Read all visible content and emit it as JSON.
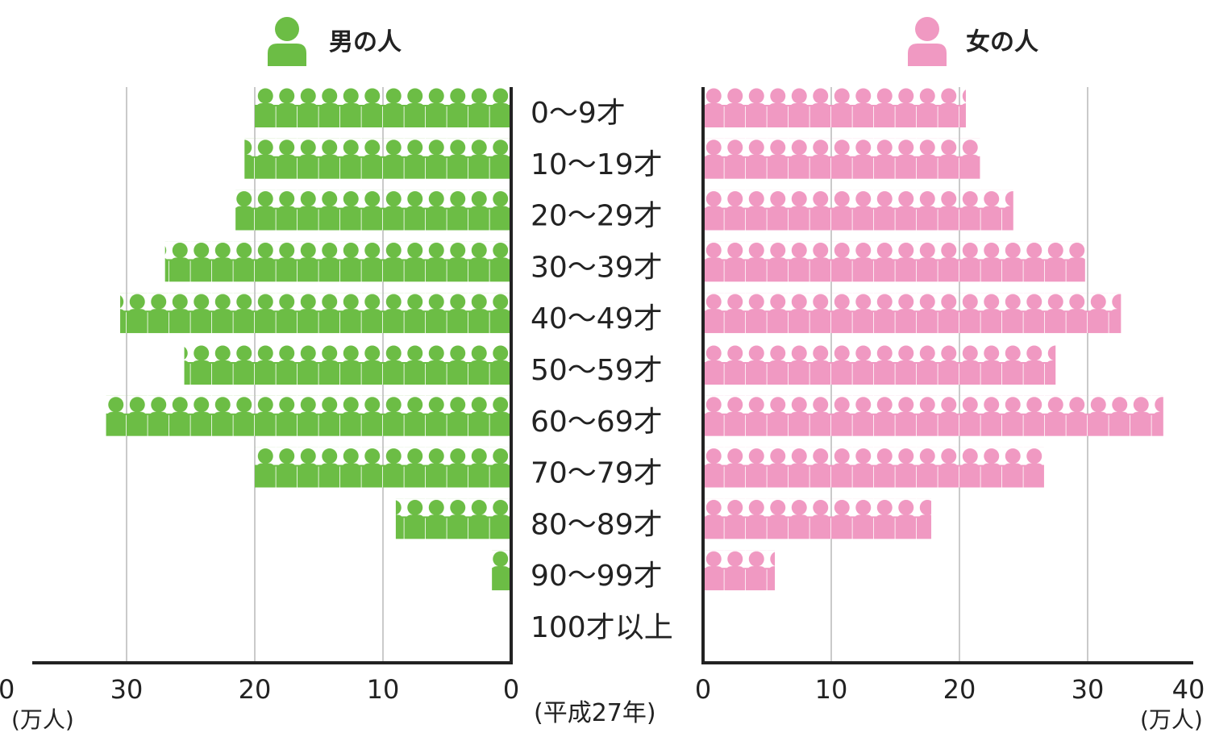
{
  "chart_data": {
    "type": "bar",
    "subtype": "population-pyramid",
    "categories": [
      "0〜9才",
      "10〜19才",
      "20〜29才",
      "30〜39才",
      "40〜49才",
      "50〜59才",
      "60〜69才",
      "70〜79才",
      "80〜89才",
      "90〜99才",
      "100才以上"
    ],
    "series": [
      {
        "name": "男の人",
        "side": "left",
        "color": "#6cbd45",
        "values": [
          20.0,
          20.8,
          21.5,
          27.0,
          30.5,
          25.5,
          31.6,
          20.0,
          9.0,
          1.5,
          0
        ]
      },
      {
        "name": "女の人",
        "side": "right",
        "color": "#f099c2",
        "values": [
          20.5,
          21.6,
          24.2,
          29.8,
          32.6,
          27.5,
          35.9,
          26.6,
          17.8,
          5.6,
          0
        ]
      }
    ],
    "xlim": [
      0,
      40
    ],
    "x_ticks": [
      "0",
      "10",
      "20",
      "30",
      "40"
    ],
    "xlabel": "(万人)",
    "note": "(平成27年)",
    "grid": true,
    "legend_position": "top"
  }
}
